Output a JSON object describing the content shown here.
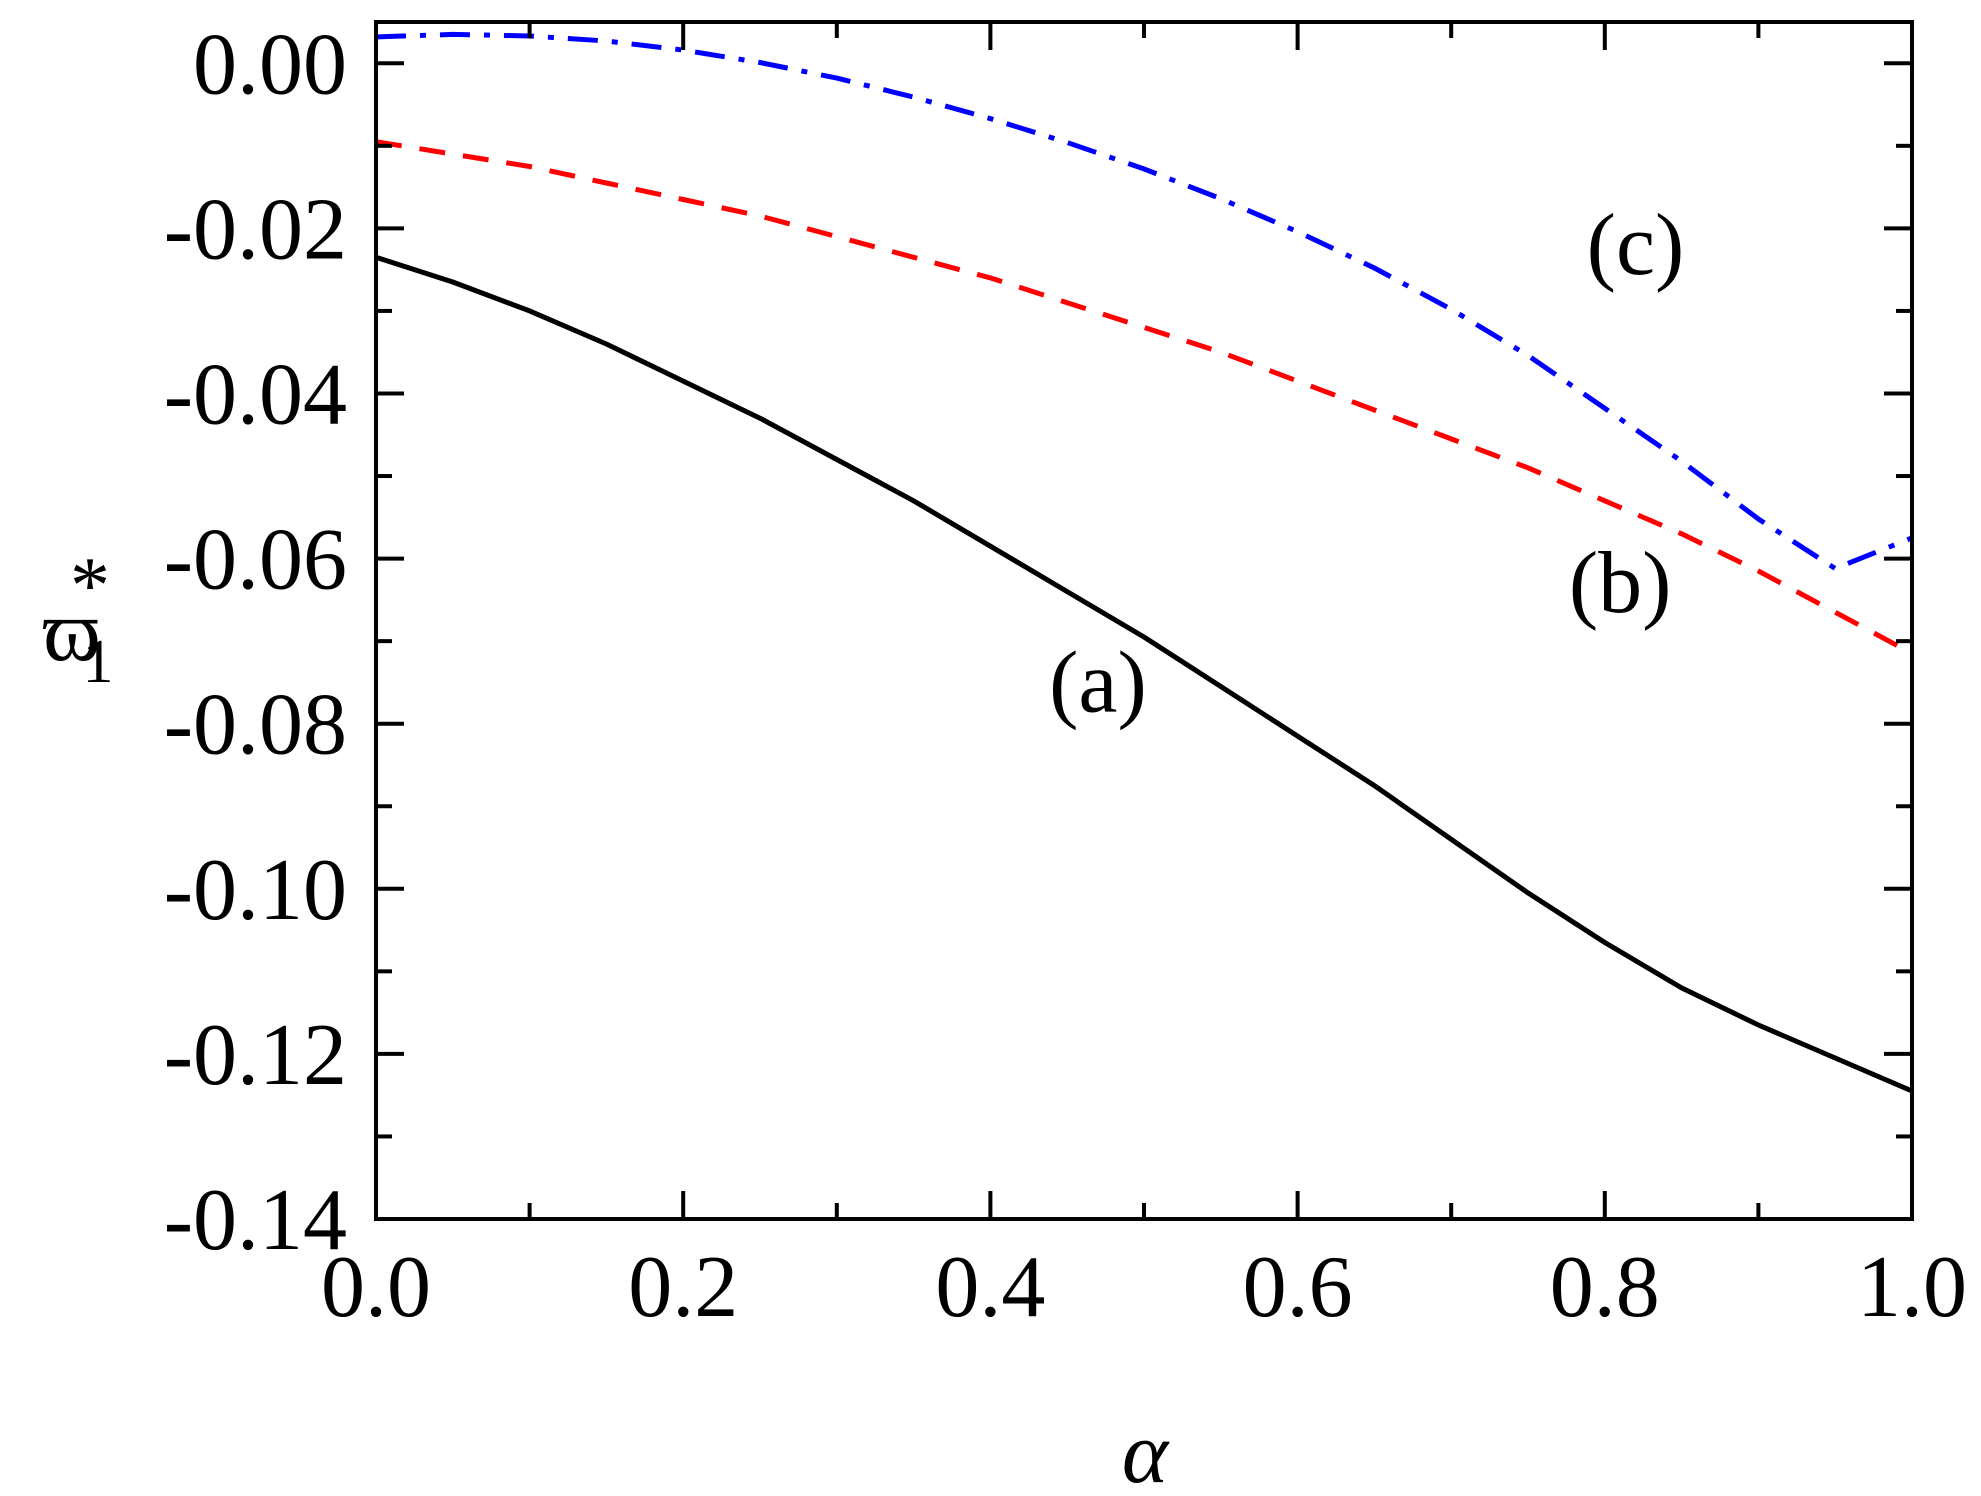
{
  "chart_data": {
    "type": "line",
    "title": "",
    "xlabel": "α",
    "ylabel": {
      "base": "ϖ",
      "subscript": "1",
      "superscript": "*"
    },
    "xlim": [
      0.0,
      1.0
    ],
    "ylim": [
      -0.14,
      0.005
    ],
    "xticks": [
      0.0,
      0.2,
      0.4,
      0.6,
      0.8,
      1.0
    ],
    "xtick_labels": [
      "0.0",
      "0.2",
      "0.4",
      "0.6",
      "0.8",
      "1.0"
    ],
    "yticks": [
      0.0,
      -0.02,
      -0.04,
      -0.06,
      -0.08,
      -0.1,
      -0.12,
      -0.14
    ],
    "ytick_labels": [
      "0.00",
      "-0.02",
      "-0.04",
      "-0.06",
      "-0.08",
      "-0.10",
      "-0.12",
      "-0.14"
    ],
    "grid": false,
    "legend": "none",
    "series": [
      {
        "label": "(a)",
        "color": "#000000",
        "style": "solid",
        "label_pos": [
          0.47,
          -0.0785
        ],
        "x": [
          0.0,
          0.05,
          0.1,
          0.15,
          0.2,
          0.25,
          0.3,
          0.35,
          0.4,
          0.45,
          0.5,
          0.55,
          0.6,
          0.65,
          0.7,
          0.75,
          0.8,
          0.85,
          0.9,
          0.95,
          1.0
        ],
        "y": [
          -0.0235,
          -0.0265,
          -0.03,
          -0.034,
          -0.0385,
          -0.043,
          -0.048,
          -0.053,
          -0.0585,
          -0.064,
          -0.0695,
          -0.0755,
          -0.0815,
          -0.0875,
          -0.094,
          -0.1005,
          -0.1065,
          -0.112,
          -0.1165,
          -0.1205,
          -0.1245
        ]
      },
      {
        "label": "(b)",
        "color": "#ff0000",
        "style": "dashed",
        "label_pos": [
          0.81,
          -0.0665
        ],
        "x": [
          0.0,
          0.05,
          0.1,
          0.15,
          0.2,
          0.25,
          0.3,
          0.35,
          0.4,
          0.45,
          0.5,
          0.55,
          0.6,
          0.65,
          0.7,
          0.75,
          0.8,
          0.85,
          0.9,
          0.95,
          1.0
        ],
        "y": [
          -0.0095,
          -0.011,
          -0.0125,
          -0.0145,
          -0.0165,
          -0.0185,
          -0.021,
          -0.0235,
          -0.026,
          -0.029,
          -0.032,
          -0.035,
          -0.0385,
          -0.042,
          -0.0455,
          -0.049,
          -0.053,
          -0.057,
          -0.0615,
          -0.0665,
          -0.0715
        ]
      },
      {
        "label": "(c)",
        "color": "#0000ff",
        "style": "dashdot",
        "label_pos": [
          0.82,
          -0.0255
        ],
        "x": [
          0.0,
          0.05,
          0.1,
          0.15,
          0.2,
          0.25,
          0.3,
          0.35,
          0.4,
          0.45,
          0.5,
          0.55,
          0.6,
          0.65,
          0.7,
          0.75,
          0.8,
          0.85,
          0.9,
          0.95,
          1.0
        ],
        "y": [
          0.0032,
          0.0035,
          0.0033,
          0.0027,
          0.0016,
          0.0001,
          -0.0018,
          -0.0041,
          -0.0067,
          -0.0096,
          -0.0128,
          -0.0164,
          -0.0204,
          -0.0248,
          -0.0298,
          -0.0354,
          -0.0418,
          -0.0482,
          -0.0552,
          -0.0612,
          -0.0575
        ]
      }
    ]
  }
}
